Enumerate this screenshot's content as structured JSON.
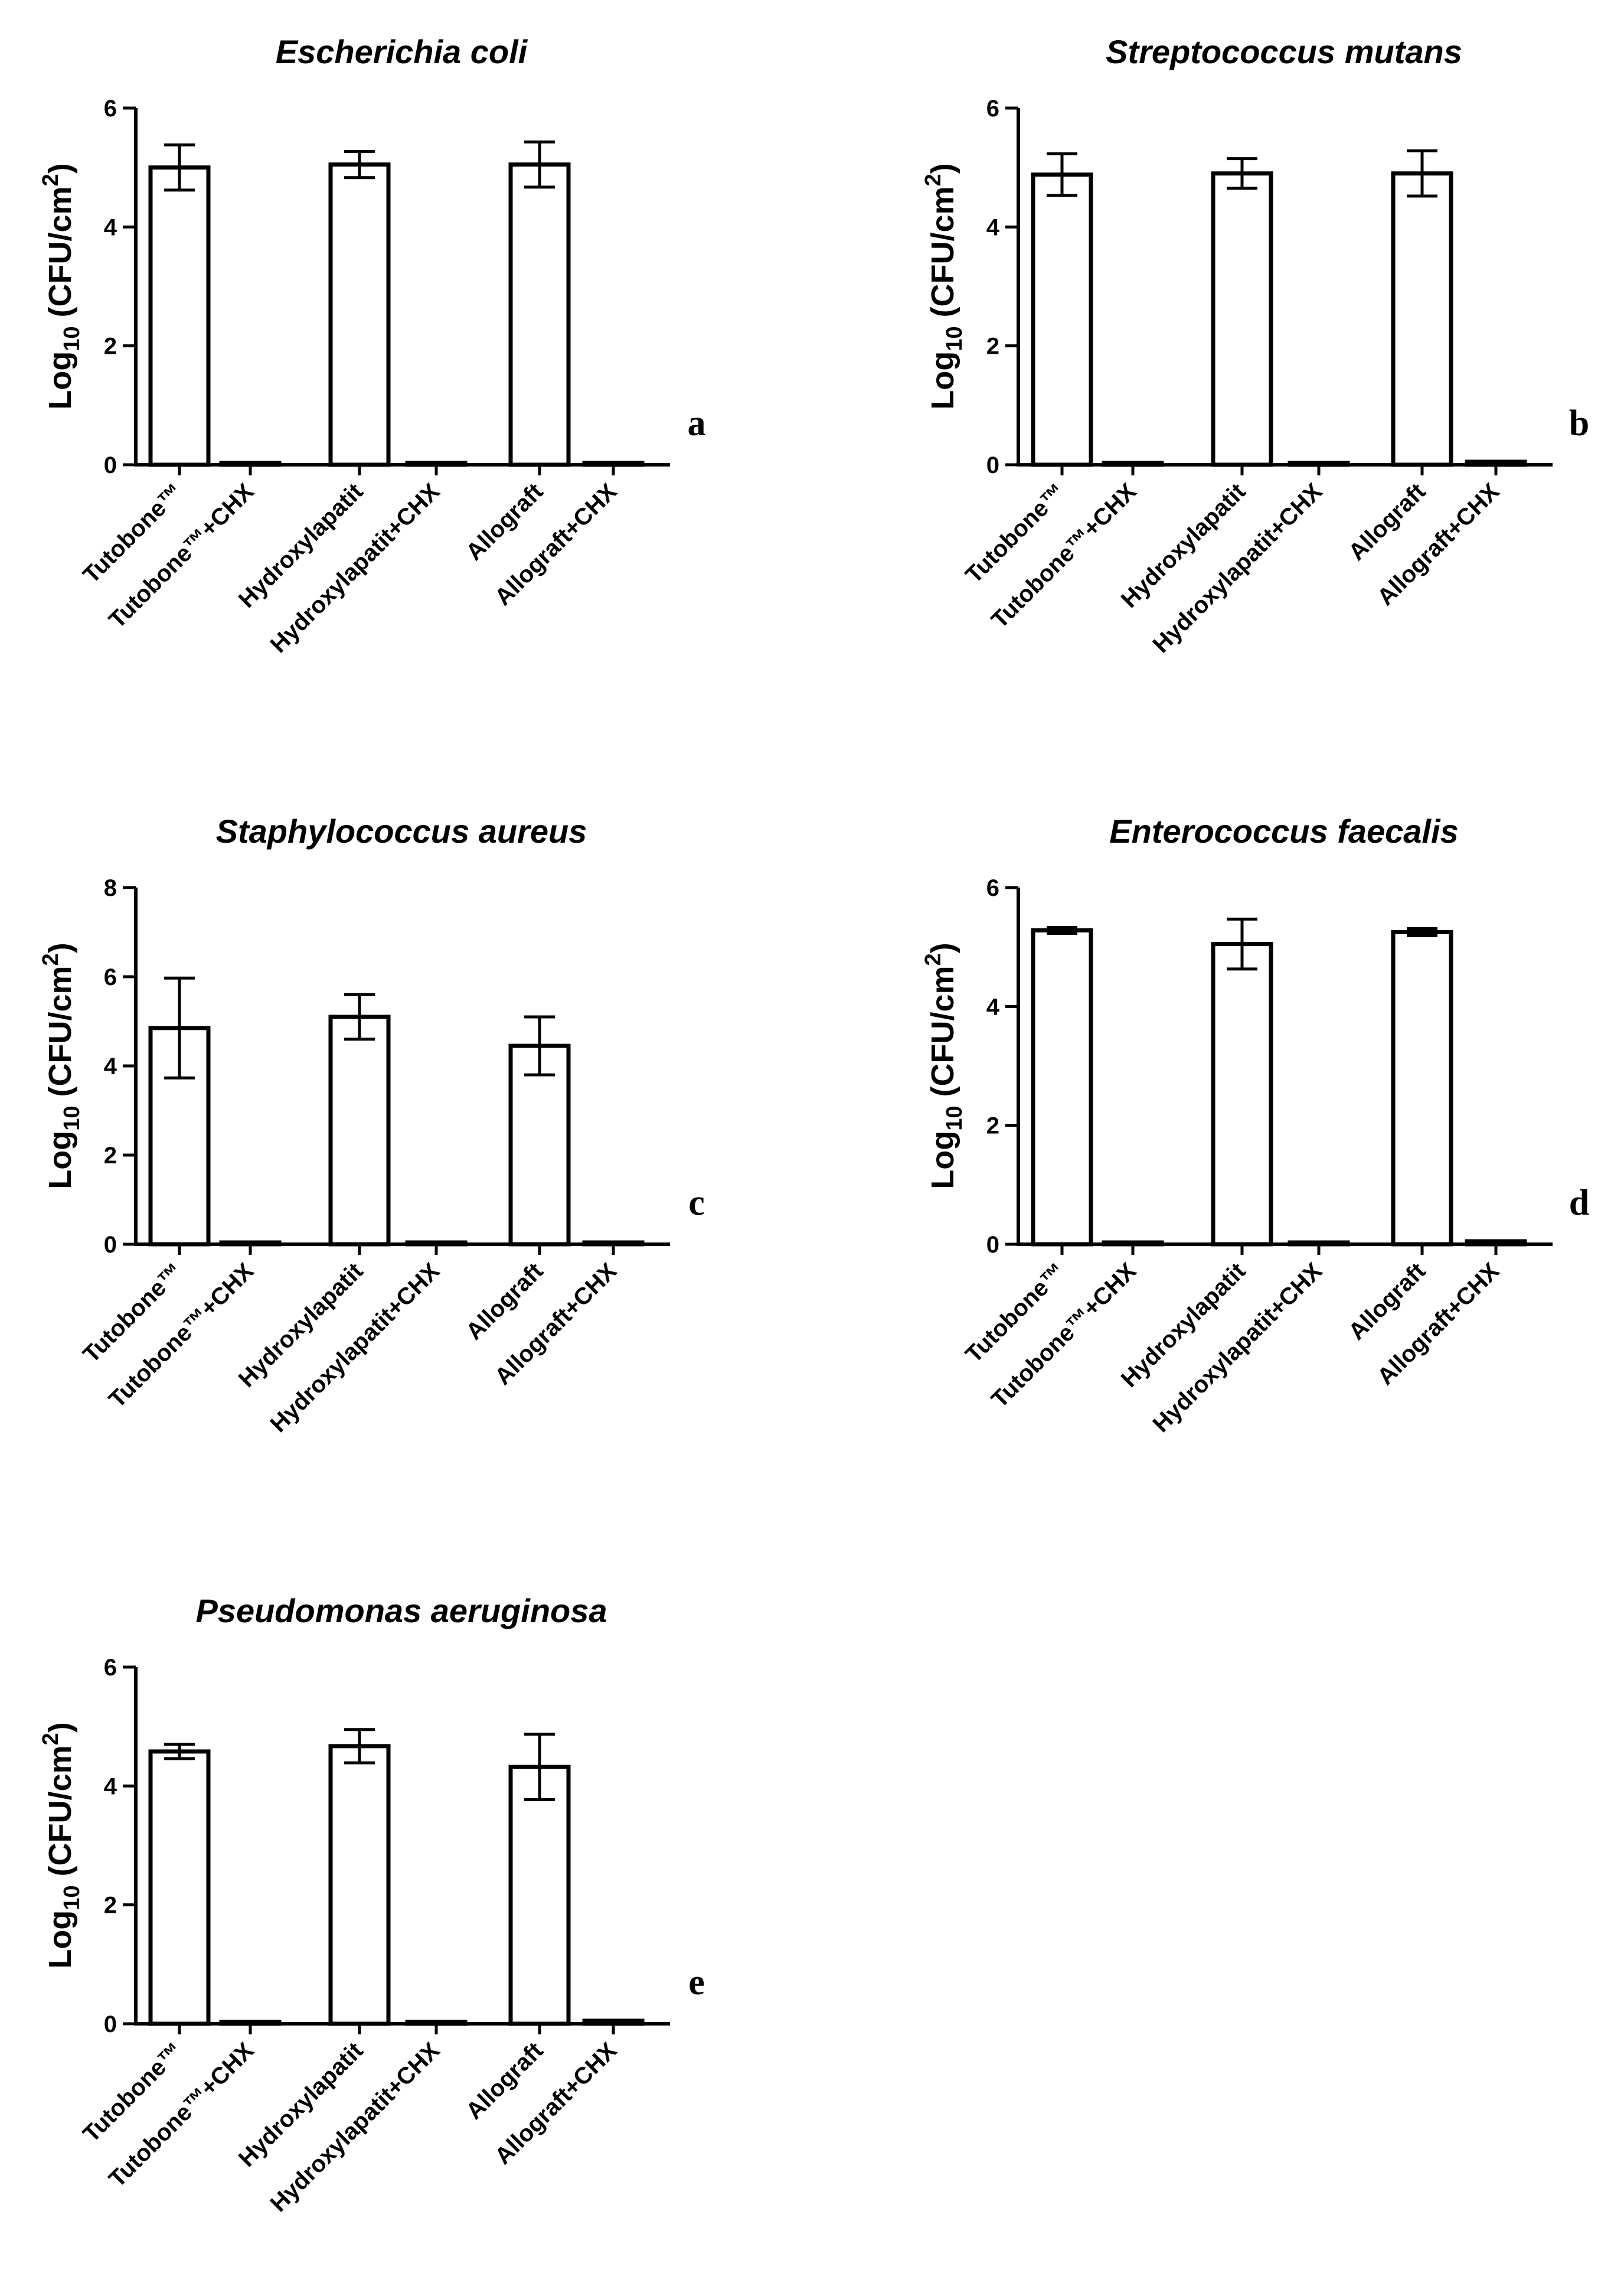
{
  "figure": {
    "ylabel_main": "Log",
    "ylabel_sub": "10",
    "ylabel_unit": " (CFU/cm",
    "ylabel_sup": "2",
    "ylabel_close": ")"
  },
  "chart_data": [
    {
      "type": "bar",
      "panel": "a",
      "title": "Escherichia coli",
      "categories": [
        "Tutobone™",
        "Tutobone™+CHX",
        "Hydroxylapatit",
        "Hydroxylapatit+CHX",
        "Allograft",
        "Allograft+CHX"
      ],
      "values": [
        5.0,
        0.02,
        5.05,
        0.02,
        5.05,
        0.02
      ],
      "errors": [
        0.38,
        0,
        0.22,
        0,
        0.38,
        0
      ],
      "ylim": [
        0,
        6
      ],
      "yticks": [
        "0",
        "2",
        "4",
        "6"
      ],
      "ylabel": "Log10 (CFU/cm2)"
    },
    {
      "type": "bar",
      "panel": "b",
      "title": "Streptococcus mutans",
      "categories": [
        "Tutobone™",
        "Tutobone™+CHX",
        "Hydroxylapatit",
        "Hydroxylapatit+CHX",
        "Allograft",
        "Allograft+CHX"
      ],
      "values": [
        4.88,
        0.02,
        4.9,
        0.02,
        4.9,
        0.05
      ],
      "errors": [
        0.35,
        0,
        0.25,
        0,
        0.38,
        0
      ],
      "ylim": [
        0,
        6
      ],
      "yticks": [
        "0",
        "2",
        "4",
        "6"
      ],
      "ylabel": "Log10 (CFU/cm2)"
    },
    {
      "type": "bar",
      "panel": "c",
      "title": "Staphylococcus aureus",
      "categories": [
        "Tutobone™",
        "Tutobone™+CHX",
        "Hydroxylapatit",
        "Hydroxylapatit+CHX",
        "Allograft",
        "Allograft+CHX"
      ],
      "values": [
        4.85,
        0.02,
        5.1,
        0.02,
        4.45,
        0.02
      ],
      "errors": [
        1.12,
        0,
        0.5,
        0,
        0.65,
        0
      ],
      "ylim": [
        0,
        8
      ],
      "yticks": [
        "0",
        "2",
        "4",
        "6",
        "8"
      ],
      "ylabel": "Log10 (CFU/cm2)"
    },
    {
      "type": "bar",
      "panel": "d",
      "title": "Enterococcus faecalis",
      "categories": [
        "Tutobone™",
        "Tutobone™+CHX",
        "Hydroxylapatit",
        "Hydroxylapatit+CHX",
        "Allograft",
        "Allograft+CHX"
      ],
      "values": [
        5.28,
        0.02,
        5.05,
        0.02,
        5.25,
        0.05
      ],
      "errors": [
        0.05,
        0,
        0.42,
        0,
        0.06,
        0
      ],
      "ylim": [
        0,
        6
      ],
      "yticks": [
        "0",
        "2",
        "4",
        "6"
      ],
      "ylabel": "Log10 (CFU/cm2)"
    },
    {
      "type": "bar",
      "panel": "e",
      "title": "Pseudomonas aeruginosa",
      "categories": [
        "Tutobone™",
        "Tutobone™+CHX",
        "Hydroxylapatit",
        "Hydroxylapatit+CHX",
        "Allograft",
        "Allograft+CHX"
      ],
      "values": [
        4.58,
        0.02,
        4.67,
        0.02,
        4.32,
        0.05
      ],
      "errors": [
        0.12,
        0,
        0.28,
        0,
        0.55,
        0
      ],
      "ylim": [
        0,
        6
      ],
      "yticks": [
        "0",
        "2",
        "4",
        "6"
      ],
      "ylabel": "Log10 (CFU/cm2)"
    }
  ]
}
